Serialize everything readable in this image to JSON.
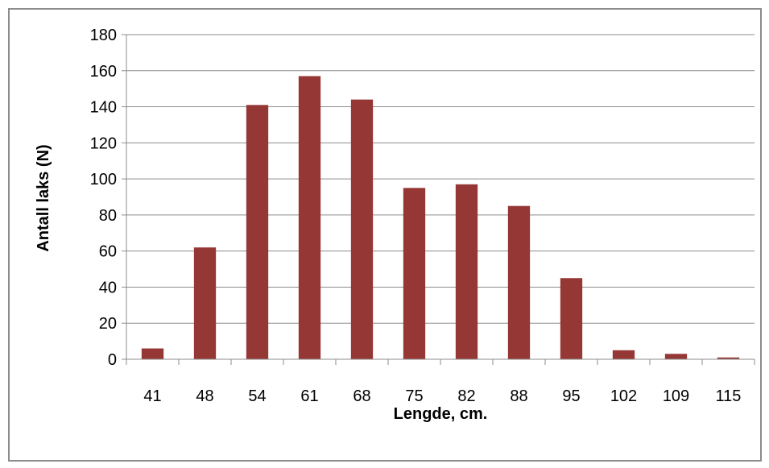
{
  "chart_data": {
    "type": "bar",
    "categories": [
      "41",
      "48",
      "54",
      "61",
      "68",
      "75",
      "82",
      "88",
      "95",
      "102",
      "109",
      "115"
    ],
    "values": [
      6,
      62,
      141,
      157,
      144,
      95,
      97,
      85,
      45,
      5,
      3,
      1
    ],
    "xlabel": "Lengde, cm.",
    "ylabel": "Antall laks (N)",
    "ylim": [
      0,
      180
    ],
    "yticks": [
      0,
      20,
      40,
      60,
      80,
      100,
      120,
      140,
      160,
      180
    ],
    "grid": true,
    "legend": "none",
    "colors": {
      "bar": "#953735",
      "grid": "#8c8c8c",
      "axis": "#8c8c8c",
      "frame": "#8c8c8c"
    }
  }
}
